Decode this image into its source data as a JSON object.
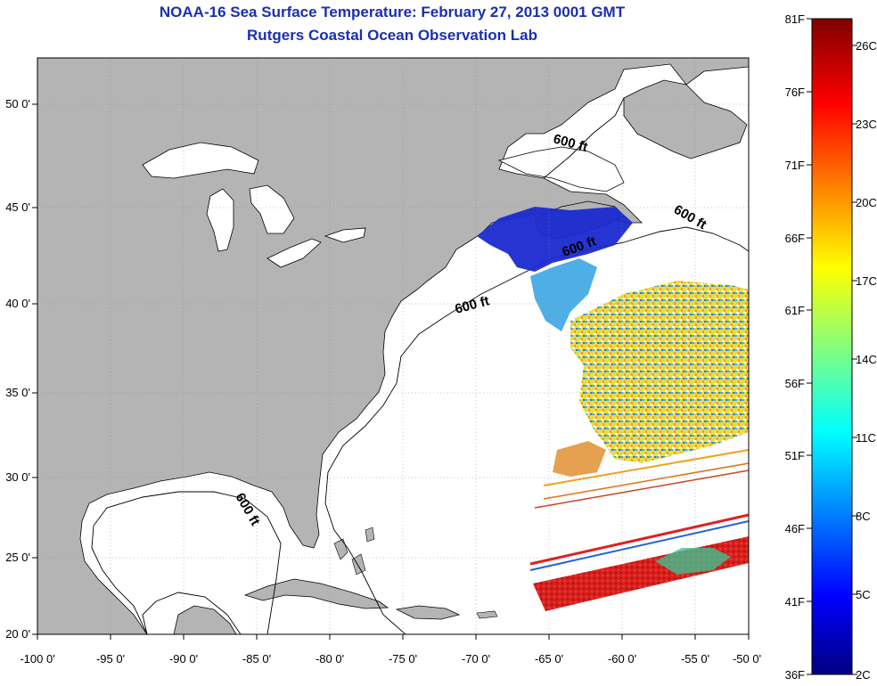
{
  "title": {
    "line1": "NOAA-16 Sea Surface Temperature:  February 27, 2013 0001 GMT",
    "line2": "Rutgers Coastal Ocean Observation Lab"
  },
  "map": {
    "longitude_ticks": [
      "-100 0'",
      "-95 0'",
      "-90 0'",
      "-85 0'",
      "-80 0'",
      "-75 0'",
      "-70 0'",
      "-65 0'",
      "-60 0'",
      "-55 0'",
      "-50 0'"
    ],
    "latitude_ticks": [
      "50 0'",
      "45 0'",
      "40 0'",
      "35 0'",
      "30 0'",
      "25 0'",
      "20 0'"
    ],
    "contour_labels": [
      "600 ft",
      "600 ft",
      "600 ft",
      "600 ft",
      "600 ft"
    ],
    "land_color": "#b4b4b4",
    "ocean_color": "#ffffff"
  },
  "colorbar": {
    "fahrenheit_labels": [
      "81F",
      "76F",
      "71F",
      "66F",
      "61F",
      "56F",
      "51F",
      "46F",
      "41F",
      "36F"
    ],
    "celsius_labels": [
      "26C",
      "23C",
      "20C",
      "17C",
      "14C",
      "11C",
      "8C",
      "5C",
      "2C"
    ],
    "colors": [
      "#800000",
      "#ff0000",
      "#ff8000",
      "#ffff00",
      "#80ff80",
      "#00ffff",
      "#0080ff",
      "#0000ff",
      "#000080"
    ]
  }
}
